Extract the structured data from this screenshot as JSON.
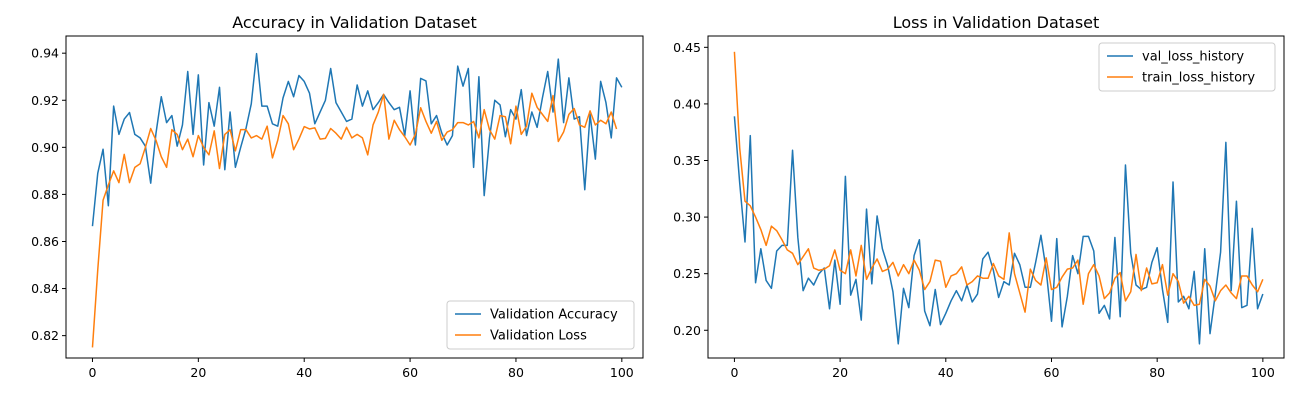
{
  "chart_data": [
    {
      "type": "line",
      "title": "Accuracy in Validation Dataset",
      "xlabel": "",
      "ylabel": "",
      "xlim": [
        -5,
        104
      ],
      "ylim": [
        0.8105,
        0.9473
      ],
      "xticks": [
        0,
        20,
        40,
        60,
        80,
        100
      ],
      "yticks": [
        0.82,
        0.84,
        0.86,
        0.88,
        0.9,
        0.92,
        0.94
      ],
      "ytick_labels": [
        "0.82",
        "0.84",
        "0.86",
        "0.88",
        "0.90",
        "0.92",
        "0.94"
      ],
      "grid": false,
      "legend": {
        "position": "lower-right"
      },
      "series": [
        {
          "name": "Validation Accuracy",
          "color": "#1f77b4",
          "values": [
            0.8665,
            0.889,
            0.8992,
            0.8752,
            0.9175,
            0.9055,
            0.912,
            0.9148,
            0.9055,
            0.904,
            0.9005,
            0.8848,
            0.906,
            0.9215,
            0.9105,
            0.9135,
            0.9005,
            0.9095,
            0.9322,
            0.9055,
            0.9308,
            0.8925,
            0.919,
            0.909,
            0.9255,
            0.8905,
            0.915,
            0.8915,
            0.9,
            0.908,
            0.9185,
            0.9398,
            0.9175,
            0.9175,
            0.91,
            0.909,
            0.921,
            0.928,
            0.9215,
            0.9305,
            0.928,
            0.923,
            0.91,
            0.915,
            0.92,
            0.9335,
            0.919,
            0.915,
            0.911,
            0.912,
            0.9265,
            0.9175,
            0.924,
            0.916,
            0.919,
            0.9225,
            0.919,
            0.916,
            0.917,
            0.905,
            0.924,
            0.901,
            0.9293,
            0.9282,
            0.91,
            0.9135,
            0.906,
            0.901,
            0.905,
            0.9345,
            0.926,
            0.9335,
            0.8915,
            0.93,
            0.8795,
            0.904,
            0.92,
            0.918,
            0.9045,
            0.916,
            0.912,
            0.9245,
            0.905,
            0.915,
            0.9085,
            0.921,
            0.9322,
            0.915,
            0.9375,
            0.9105,
            0.9295,
            0.912,
            0.913,
            0.882,
            0.914,
            0.895,
            0.928,
            0.919,
            0.904,
            0.9295,
            0.9255
          ]
        },
        {
          "name": "Validation Loss",
          "color": "#ff7f0e",
          "values": [
            0.815,
            0.848,
            0.8775,
            0.884,
            0.89,
            0.885,
            0.897,
            0.885,
            0.8915,
            0.893,
            0.9,
            0.908,
            0.903,
            0.896,
            0.8915,
            0.9075,
            0.9055,
            0.899,
            0.9035,
            0.896,
            0.905,
            0.9,
            0.8968,
            0.907,
            0.891,
            0.9055,
            0.9075,
            0.8985,
            0.9075,
            0.9075,
            0.904,
            0.905,
            0.9035,
            0.909,
            0.8955,
            0.903,
            0.9135,
            0.91,
            0.899,
            0.9035,
            0.9088,
            0.9078,
            0.9083,
            0.9035,
            0.9038,
            0.908,
            0.906,
            0.9035,
            0.9085,
            0.904,
            0.9055,
            0.904,
            0.8968,
            0.9095,
            0.915,
            0.9225,
            0.9035,
            0.9115,
            0.9075,
            0.9045,
            0.901,
            0.9055,
            0.9168,
            0.911,
            0.906,
            0.911,
            0.903,
            0.9065,
            0.9075,
            0.9105,
            0.9105,
            0.9095,
            0.911,
            0.904,
            0.916,
            0.9075,
            0.9035,
            0.9135,
            0.913,
            0.9015,
            0.9175,
            0.9055,
            0.909,
            0.923,
            0.917,
            0.914,
            0.911,
            0.922,
            0.9025,
            0.9065,
            0.914,
            0.9165,
            0.9095,
            0.9085,
            0.9155,
            0.9095,
            0.9115,
            0.91,
            0.915,
            0.9078
          ]
        }
      ]
    },
    {
      "type": "line",
      "title": "Loss in Validation Dataset",
      "xlabel": "",
      "ylabel": "",
      "xlim": [
        -5,
        104
      ],
      "ylim": [
        0.1755,
        0.46
      ],
      "xticks": [
        0,
        20,
        40,
        60,
        80,
        100
      ],
      "yticks": [
        0.2,
        0.25,
        0.3,
        0.35,
        0.4,
        0.45
      ],
      "ytick_labels": [
        "0.20",
        "0.25",
        "0.30",
        "0.35",
        "0.40",
        "0.45"
      ],
      "grid": false,
      "legend": {
        "position": "upper-right"
      },
      "series": [
        {
          "name": "val_loss_history",
          "color": "#1f77b4",
          "values": [
            0.389,
            0.33,
            0.278,
            0.372,
            0.242,
            0.272,
            0.244,
            0.237,
            0.27,
            0.275,
            0.275,
            0.359,
            0.282,
            0.235,
            0.246,
            0.24,
            0.25,
            0.255,
            0.219,
            0.262,
            0.223,
            0.336,
            0.231,
            0.245,
            0.209,
            0.307,
            0.241,
            0.301,
            0.272,
            0.257,
            0.234,
            0.188,
            0.237,
            0.22,
            0.266,
            0.28,
            0.217,
            0.204,
            0.236,
            0.205,
            0.215,
            0.226,
            0.235,
            0.226,
            0.24,
            0.225,
            0.232,
            0.263,
            0.269,
            0.253,
            0.229,
            0.243,
            0.24,
            0.268,
            0.258,
            0.238,
            0.238,
            0.26,
            0.284,
            0.253,
            0.208,
            0.281,
            0.203,
            0.23,
            0.266,
            0.25,
            0.283,
            0.283,
            0.27,
            0.215,
            0.222,
            0.21,
            0.282,
            0.212,
            0.346,
            0.268,
            0.24,
            0.236,
            0.238,
            0.26,
            0.273,
            0.236,
            0.207,
            0.331,
            0.225,
            0.23,
            0.219,
            0.252,
            0.188,
            0.272,
            0.197,
            0.232,
            0.269,
            0.366,
            0.235,
            0.314,
            0.22,
            0.222,
            0.29,
            0.219,
            0.232
          ]
        },
        {
          "name": "train_loss_history",
          "color": "#ff7f0e",
          "values": [
            0.446,
            0.361,
            0.314,
            0.31,
            0.3,
            0.289,
            0.275,
            0.292,
            0.288,
            0.28,
            0.271,
            0.268,
            0.258,
            0.265,
            0.272,
            0.255,
            0.253,
            0.254,
            0.257,
            0.271,
            0.253,
            0.25,
            0.271,
            0.248,
            0.275,
            0.245,
            0.255,
            0.263,
            0.252,
            0.254,
            0.26,
            0.248,
            0.258,
            0.25,
            0.262,
            0.253,
            0.236,
            0.243,
            0.262,
            0.261,
            0.238,
            0.248,
            0.25,
            0.256,
            0.24,
            0.243,
            0.248,
            0.246,
            0.246,
            0.259,
            0.248,
            0.245,
            0.286,
            0.25,
            0.233,
            0.216,
            0.254,
            0.244,
            0.24,
            0.264,
            0.236,
            0.238,
            0.247,
            0.254,
            0.255,
            0.262,
            0.223,
            0.25,
            0.258,
            0.248,
            0.228,
            0.233,
            0.246,
            0.251,
            0.226,
            0.234,
            0.267,
            0.235,
            0.255,
            0.241,
            0.242,
            0.258,
            0.231,
            0.25,
            0.243,
            0.224,
            0.23,
            0.222,
            0.223,
            0.245,
            0.239,
            0.226,
            0.235,
            0.24,
            0.233,
            0.228,
            0.248,
            0.248,
            0.24,
            0.234,
            0.245
          ]
        }
      ]
    }
  ]
}
